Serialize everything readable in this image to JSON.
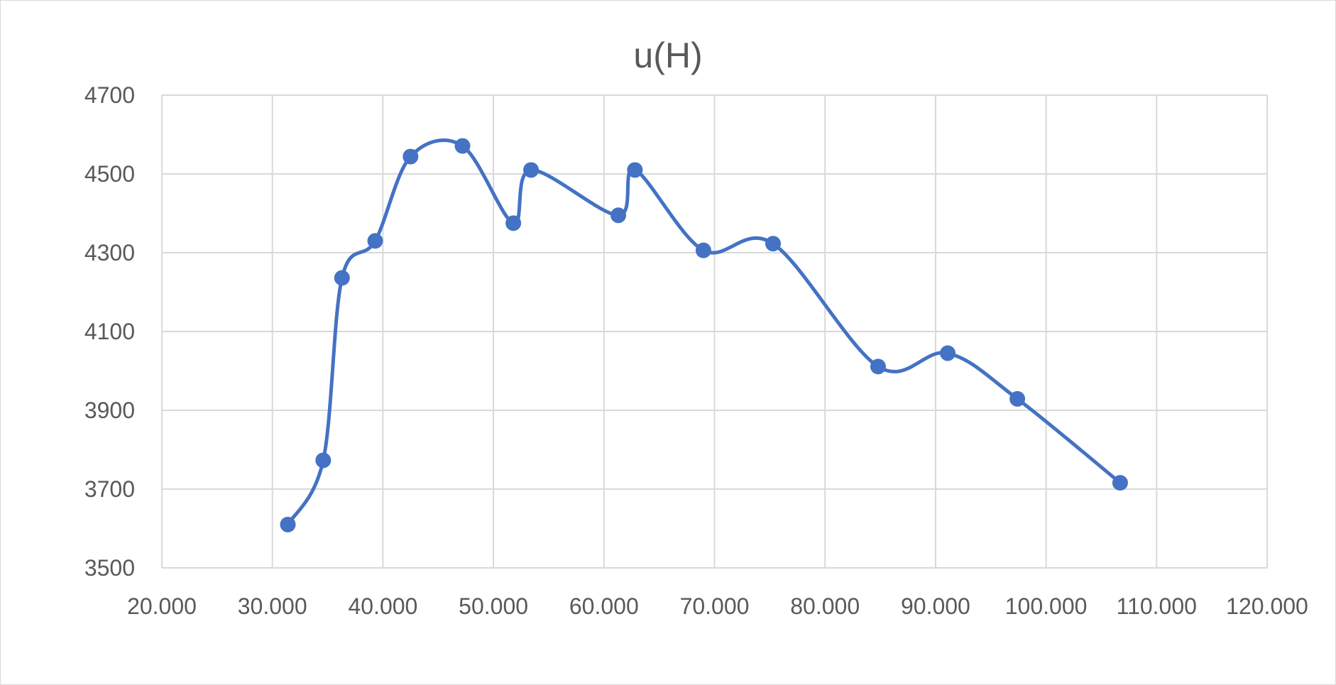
{
  "chart_data": {
    "type": "scatter",
    "title": "u(H)",
    "xlim": [
      20,
      120
    ],
    "ylim": [
      3500,
      4700
    ],
    "x_ticks": [
      20,
      30,
      40,
      50,
      60,
      70,
      80,
      90,
      100,
      110,
      120
    ],
    "x_tick_labels": [
      "20.000",
      "30.000",
      "40.000",
      "50.000",
      "60.000",
      "70.000",
      "80.000",
      "90.000",
      "100.000",
      "110.000",
      "120.000"
    ],
    "y_ticks": [
      3500,
      3700,
      3900,
      4100,
      4300,
      4500,
      4700
    ],
    "y_tick_labels": [
      "3500",
      "3700",
      "3900",
      "4100",
      "4300",
      "4500",
      "4700"
    ],
    "grid": true,
    "smooth_line": true,
    "series": [
      {
        "color": "#4472C4",
        "points": [
          {
            "x": 31.4,
            "y": 3610
          },
          {
            "x": 34.6,
            "y": 3773
          },
          {
            "x": 36.3,
            "y": 4236
          },
          {
            "x": 39.3,
            "y": 4330
          },
          {
            "x": 42.5,
            "y": 4544
          },
          {
            "x": 47.2,
            "y": 4571
          },
          {
            "x": 51.8,
            "y": 4375
          },
          {
            "x": 53.4,
            "y": 4510
          },
          {
            "x": 61.3,
            "y": 4395
          },
          {
            "x": 62.8,
            "y": 4510
          },
          {
            "x": 69.0,
            "y": 4306
          },
          {
            "x": 75.3,
            "y": 4323
          },
          {
            "x": 84.8,
            "y": 4011
          },
          {
            "x": 91.1,
            "y": 4045
          },
          {
            "x": 97.4,
            "y": 3929
          },
          {
            "x": 106.7,
            "y": 3716
          }
        ]
      }
    ]
  }
}
